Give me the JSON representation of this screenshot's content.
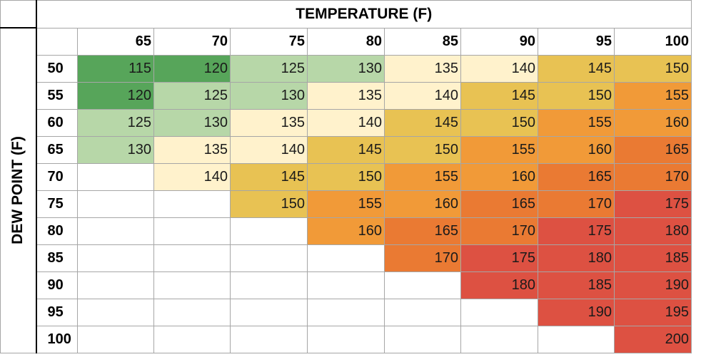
{
  "chart_data": {
    "type": "heatmap",
    "xlabel": "TEMPERATURE (F)",
    "ylabel": "DEW POINT (F)",
    "x": [
      65,
      70,
      75,
      80,
      85,
      90,
      95,
      100
    ],
    "y": [
      50,
      55,
      60,
      65,
      70,
      75,
      80,
      85,
      90,
      95,
      100
    ],
    "values": [
      [
        115,
        120,
        125,
        130,
        135,
        140,
        145,
        150
      ],
      [
        120,
        125,
        130,
        135,
        140,
        145,
        150,
        155
      ],
      [
        125,
        130,
        135,
        140,
        145,
        150,
        155,
        160
      ],
      [
        130,
        135,
        140,
        145,
        150,
        155,
        160,
        165
      ],
      [
        null,
        140,
        145,
        150,
        155,
        160,
        165,
        170
      ],
      [
        null,
        null,
        150,
        155,
        160,
        165,
        170,
        175
      ],
      [
        null,
        null,
        null,
        160,
        165,
        170,
        175,
        180
      ],
      [
        null,
        null,
        null,
        null,
        170,
        175,
        180,
        185
      ],
      [
        null,
        null,
        null,
        null,
        null,
        180,
        185,
        190
      ],
      [
        null,
        null,
        null,
        null,
        null,
        null,
        190,
        195
      ],
      [
        null,
        null,
        null,
        null,
        null,
        null,
        null,
        200
      ]
    ],
    "colors": {
      "115": "#57a55a",
      "120": "#57a55a",
      "125": "#b7d7a8",
      "130": "#b7d7a8",
      "135": "#fff2cc",
      "140": "#fff2cc",
      "145": "#e8c253",
      "150": "#e8c253",
      "155": "#f19a38",
      "160": "#f19a38",
      "165": "#ea7a33",
      "170": "#ea7a33",
      "175": "#dd5142",
      "180": "#dd5142",
      "185": "#dd5142",
      "190": "#dd5142",
      "195": "#dd5142",
      "200": "#dd5142"
    }
  }
}
